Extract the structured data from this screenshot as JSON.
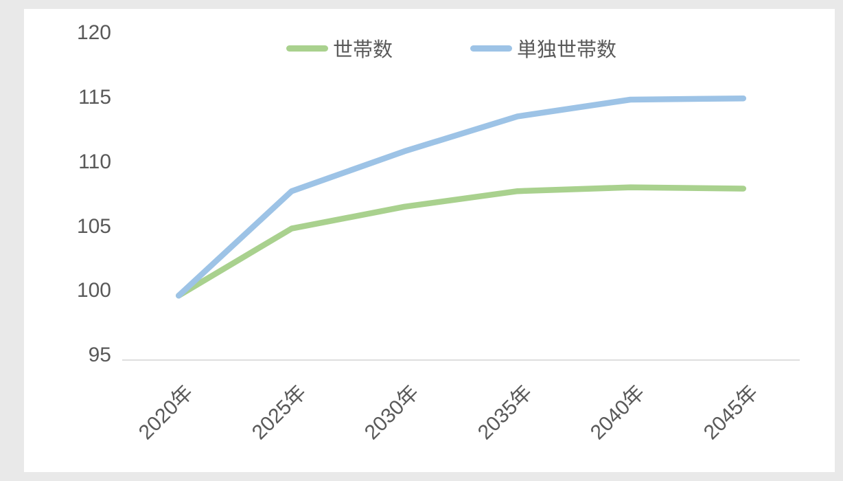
{
  "page": {
    "background_color": "#e9e9e9",
    "panel_color": "#ffffff"
  },
  "chart_data": {
    "type": "line",
    "title": "",
    "xlabel": "",
    "ylabel": "",
    "categories": [
      "2020年",
      "2025年",
      "2030年",
      "2035年",
      "2040年",
      "2045年"
    ],
    "series": [
      {
        "name": "世帯数",
        "color": "#a9d18e",
        "values": [
          100,
          105.2,
          106.9,
          108.1,
          108.4,
          108.3
        ]
      },
      {
        "name": "単独世帯数",
        "color": "#9dc3e6",
        "values": [
          100,
          108.1,
          111.2,
          113.9,
          115.2,
          115.3
        ]
      }
    ],
    "ylim": [
      95,
      120
    ],
    "yticks": [
      120,
      115,
      110,
      105,
      100,
      95
    ],
    "grid": false,
    "legend_position": "top-center",
    "x_tick_rotation_deg": 45,
    "axis_line_color": "#d9d9d9",
    "tick_label_color": "#595959"
  }
}
